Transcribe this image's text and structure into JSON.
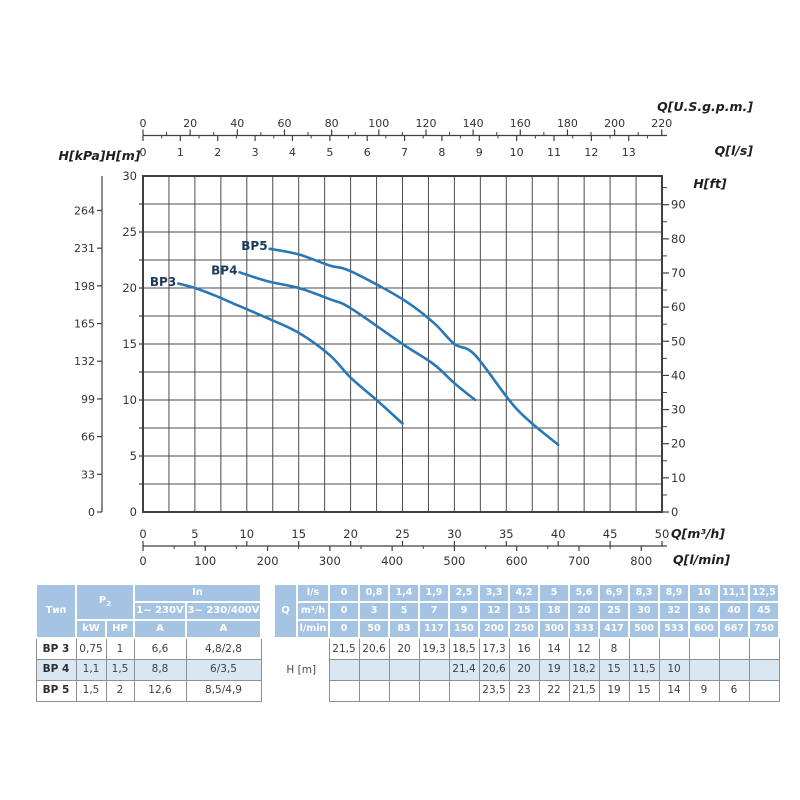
{
  "chart_data": {
    "type": "line",
    "title": "",
    "xlabel": "Q[m³/h]",
    "ylabel": "H[m]",
    "xlim": [
      0,
      50
    ],
    "ylim": [
      0,
      30
    ],
    "grid": true,
    "legend_position": "inline-labels",
    "series": [
      {
        "name": "BP3",
        "x": [
          3.4,
          5,
          7,
          9,
          12,
          15,
          18,
          20,
          22.5,
          25
        ],
        "y": [
          20.4,
          20,
          19.3,
          18.5,
          17.3,
          16,
          14,
          12,
          10,
          7.9
        ]
      },
      {
        "name": "BP4",
        "x": [
          9.3,
          12,
          15,
          18,
          20,
          25,
          28,
          30,
          32
        ],
        "y": [
          21.4,
          20.6,
          20,
          19,
          18.2,
          15,
          13.2,
          11.5,
          10
        ]
      },
      {
        "name": "BP5",
        "x": [
          12.2,
          15,
          18,
          20,
          25,
          28,
          30,
          32,
          36,
          40
        ],
        "y": [
          23.5,
          23,
          22,
          21.5,
          19,
          16.9,
          15,
          14,
          9.2,
          6
        ]
      }
    ]
  },
  "chart": {
    "colors": {
      "curve": "#2878b6",
      "grid": "#4c4c4c",
      "frame": "#3f3f3f",
      "tick_text": "#333333",
      "title_text": "#1f1f1f",
      "curve_label": "#1c3a5c"
    },
    "curve_labels": [
      {
        "text": "BP3",
        "q": 3.2,
        "m": 20.55
      },
      {
        "text": "BP4",
        "q": 9.1,
        "m": 21.55
      },
      {
        "text": "BP5",
        "q": 12.0,
        "m": 23.75
      }
    ],
    "axes": {
      "top_gpm": {
        "title": "Q[U.S.g.p.m.]",
        "ticks": [
          0,
          20,
          40,
          60,
          80,
          100,
          120,
          140,
          160,
          180,
          200,
          220
        ],
        "max": 220.1,
        "minor": 10
      },
      "top_ls": {
        "title": "Q[l/s]",
        "ticks": [
          0,
          1,
          2,
          3,
          4,
          5,
          6,
          7,
          8,
          9,
          10,
          11,
          12,
          13
        ],
        "max": 13.89,
        "minor": 0.5
      },
      "left_kpa": {
        "title": "H[kPa]",
        "ticks": [
          0,
          33,
          66,
          99,
          132,
          165,
          198,
          231,
          264
        ],
        "max": 294.2
      },
      "left_m": {
        "title": "H[m]",
        "ticks": [
          0,
          5,
          10,
          15,
          20,
          25,
          30
        ],
        "max": 30
      },
      "right_ft": {
        "title": "H[ft]",
        "ticks": [
          0,
          10,
          20,
          30,
          40,
          50,
          60,
          70,
          80,
          90
        ],
        "max": 98.4,
        "minor": 5
      },
      "bottom_m3h": {
        "title": "Q[m³/h]",
        "ticks": [
          0,
          5,
          10,
          15,
          20,
          25,
          30,
          35,
          40,
          45,
          50
        ],
        "max": 50
      },
      "bottom_lmin": {
        "title": "Q[l/min]",
        "ticks": [
          0,
          100,
          200,
          300,
          400,
          500,
          600,
          700,
          800
        ],
        "max": 833.3,
        "minor": 50
      }
    }
  },
  "table": {
    "colors": {
      "header_bg": "#a5c3e3",
      "row_alt_bg": "#d9e7f3",
      "border": "#8f8f8f",
      "header_text": "#ffffff",
      "body_text": "#3f3f3f"
    },
    "spec": {
      "type_header": "Тип",
      "p2_header_base": "P",
      "p2_header_sub": "2",
      "in_header": "In",
      "voltage_cols": [
        "1~ 230V",
        "3~ 230/400V"
      ],
      "unit_row": [
        "kW",
        "HP",
        "A",
        "A"
      ],
      "rows": [
        {
          "type": "BP 3",
          "kw": "0,75",
          "hp": "1",
          "a1": "6,6",
          "a3": "4,8/2,8"
        },
        {
          "type": "BP 4",
          "kw": "1,1",
          "hp": "1,5",
          "a1": "8,8",
          "a3": "6/3,5"
        },
        {
          "type": "BP 5",
          "kw": "1,5",
          "hp": "2",
          "a1": "12,6",
          "a3": "8,5/4,9"
        }
      ]
    },
    "flow": {
      "q_label": "Q",
      "unit_labels": [
        "l/s",
        "m³/h",
        "l/min"
      ],
      "header_rows": [
        [
          "0",
          "0,8",
          "1,4",
          "1,9",
          "2,5",
          "3,3",
          "4,2",
          "5",
          "5,6",
          "6,9",
          "8,3",
          "8,9",
          "10",
          "11,1",
          "12,5"
        ],
        [
          "0",
          "3",
          "5",
          "7",
          "9",
          "12",
          "15",
          "18",
          "20",
          "25",
          "30",
          "32",
          "36",
          "40",
          "45"
        ],
        [
          "0",
          "50",
          "83",
          "117",
          "150",
          "200",
          "250",
          "300",
          "333",
          "417",
          "500",
          "533",
          "600",
          "667",
          "750"
        ]
      ],
      "h_label": "H [m]",
      "h_rows": [
        [
          "21,5",
          "20,6",
          "20",
          "19,3",
          "18,5",
          "17,3",
          "16",
          "14",
          "12",
          "8",
          "",
          "",
          "",
          "",
          ""
        ],
        [
          "",
          "",
          "",
          "",
          "21,4",
          "20,6",
          "20",
          "19",
          "18,2",
          "15",
          "11,5",
          "10",
          "",
          "",
          ""
        ],
        [
          "",
          "",
          "",
          "",
          "",
          "23,5",
          "23",
          "22",
          "21,5",
          "19",
          "15",
          "14",
          "9",
          "6",
          ""
        ]
      ]
    }
  }
}
